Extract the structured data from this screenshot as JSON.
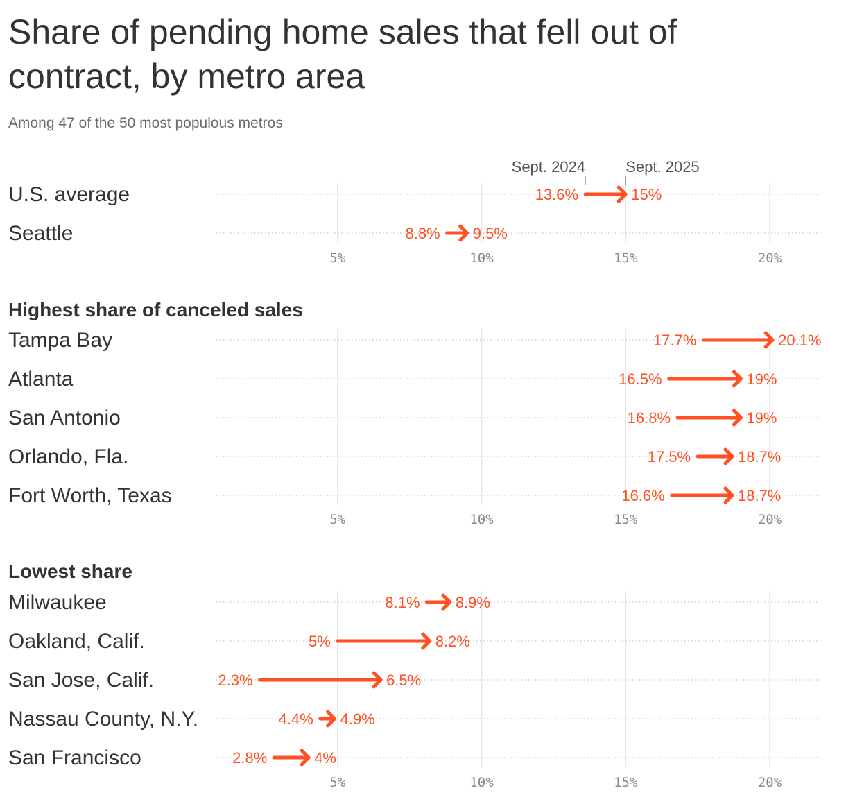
{
  "title": "Share of pending home sales that fell out of contract, by metro area",
  "subtitle": "Among 47 of the 50 most populous metros",
  "colors": {
    "arrow": "#FF5123",
    "label_from": "#FF5123",
    "text": "#333333",
    "axis": "#888888",
    "grid": "#e6e6e6",
    "dots": "#cfcfcf"
  },
  "chart_data": {
    "type": "arrow-dumbbell",
    "legend": {
      "from_label": "Sept. 2024",
      "to_label": "Sept. 2025",
      "placement": "above first panel"
    },
    "x_ticks": [
      "5%",
      "10%",
      "15%",
      "20%"
    ],
    "x_tick_values": [
      5,
      10,
      15,
      20
    ],
    "xlim": [
      0,
      22
    ],
    "unit": "%",
    "panels": [
      {
        "heading": "",
        "rows": [
          {
            "label": "U.S. average",
            "from": 13.6,
            "to": 15,
            "from_label": "13.6%",
            "to_label": "15%"
          },
          {
            "label": "Seattle",
            "from": 8.8,
            "to": 9.5,
            "from_label": "8.8%",
            "to_label": "9.5%"
          }
        ]
      },
      {
        "heading": "Highest share of canceled sales",
        "rows": [
          {
            "label": "Tampa Bay",
            "from": 17.7,
            "to": 20.1,
            "from_label": "17.7%",
            "to_label": "20.1%"
          },
          {
            "label": "Atlanta",
            "from": 16.5,
            "to": 19,
            "from_label": "16.5%",
            "to_label": "19%"
          },
          {
            "label": "San Antonio",
            "from": 16.8,
            "to": 19,
            "from_label": "16.8%",
            "to_label": "19%"
          },
          {
            "label": "Orlando, Fla.",
            "from": 17.5,
            "to": 18.7,
            "from_label": "17.5%",
            "to_label": "18.7%"
          },
          {
            "label": "Fort Worth, Texas",
            "from": 16.6,
            "to": 18.7,
            "from_label": "16.6%",
            "to_label": "18.7%"
          }
        ]
      },
      {
        "heading": "Lowest share",
        "rows": [
          {
            "label": "Milwaukee",
            "from": 8.1,
            "to": 8.9,
            "from_label": "8.1%",
            "to_label": "8.9%"
          },
          {
            "label": "Oakland, Calif.",
            "from": 5,
            "to": 8.2,
            "from_label": "5%",
            "to_label": "8.2%"
          },
          {
            "label": "San Jose, Calif.",
            "from": 2.3,
            "to": 6.5,
            "from_label": "2.3%",
            "to_label": "6.5%"
          },
          {
            "label": "Nassau County, N.Y.",
            "from": 4.4,
            "to": 4.9,
            "from_label": "4.4%",
            "to_label": "4.9%"
          },
          {
            "label": "San Francisco",
            "from": 2.8,
            "to": 4,
            "from_label": "2.8%",
            "to_label": "4%"
          }
        ]
      }
    ]
  }
}
